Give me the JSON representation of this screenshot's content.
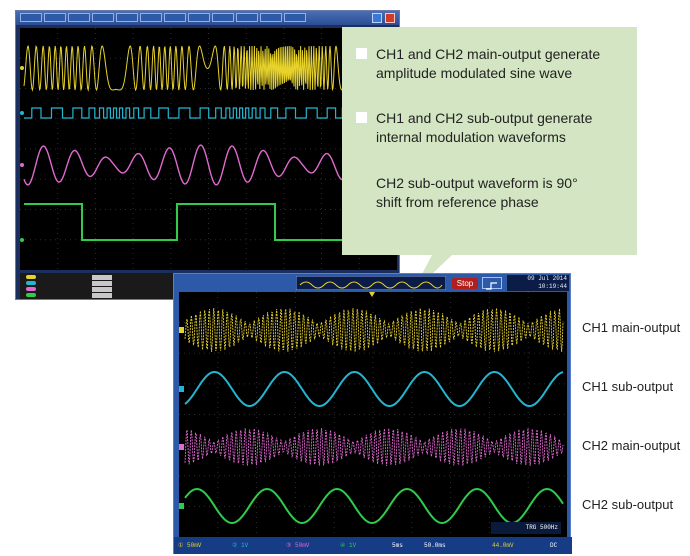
{
  "callout": {
    "bullets": [
      {
        "line1": "CH1 and CH2 main-output generate",
        "line2": "amplitude modulated sine wave",
        "has_marker": true
      },
      {
        "line1": "CH1 and CH2 sub-output generate",
        "line2": "internal modulation waveforms",
        "has_marker": true
      },
      {
        "line1": "CH2 sub-output waveform is 90°",
        "line2": "shift from reference phase",
        "has_marker": false
      }
    ]
  },
  "scope_front": {
    "stop_label": "Stop",
    "date_line1": "09 Jul 2014",
    "date_line2": "10:19:44",
    "trigger_readout": "TRG 500Hz",
    "bottom": {
      "ch1": "50mV",
      "ch2": "1V",
      "ch3": "50mV",
      "ch4": "1V",
      "timebase": "5ms",
      "sample": "50.0ms",
      "trig_level": "44.0mV",
      "coupling": "DC"
    }
  },
  "trace_labels": [
    "CH1 main-output",
    "CH1 sub-output",
    "CH2 main-output",
    "CH2 sub-output"
  ],
  "colors": {
    "ch1": "#e6d22b",
    "ch2": "#23b6d2",
    "ch3": "#e06ad0",
    "ch4": "#2ecc4a",
    "callout_bg": "#d3e5c2",
    "scope_frame": "#2d5aa8"
  }
}
